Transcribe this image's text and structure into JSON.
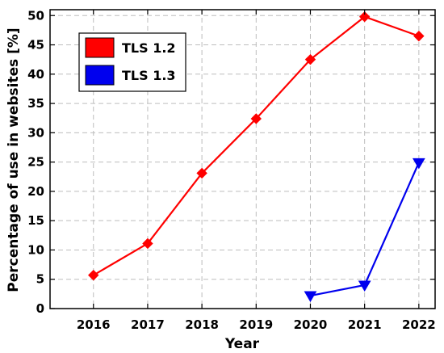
{
  "chart_data": {
    "type": "line",
    "title": "",
    "xlabel": "Year",
    "ylabel": "Percentage of use in websites [%]",
    "categories": [
      "2016",
      "2017",
      "2018",
      "2019",
      "2020",
      "2021",
      "2022"
    ],
    "x": [
      2016,
      2017,
      2018,
      2019,
      2020,
      2021,
      2022
    ],
    "xlim": [
      2015.2,
      2022.3
    ],
    "ylim": [
      0,
      51
    ],
    "yticks": [
      0,
      5,
      10,
      15,
      20,
      25,
      30,
      35,
      40,
      45,
      50
    ],
    "grid": true,
    "legend_position": "top-left",
    "series": [
      {
        "name": "TLS 1.2",
        "color": "#ff0000",
        "marker": "diamond",
        "x": [
          2016,
          2017,
          2018,
          2019,
          2020,
          2021,
          2022
        ],
        "values": [
          5.7,
          11.1,
          23.1,
          32.4,
          42.5,
          49.8,
          46.5
        ]
      },
      {
        "name": "TLS 1.3",
        "color": "#0000ee",
        "marker": "triangle-down",
        "x": [
          2020,
          2021,
          2022
        ],
        "values": [
          2.2,
          4.0,
          24.9
        ]
      }
    ]
  }
}
